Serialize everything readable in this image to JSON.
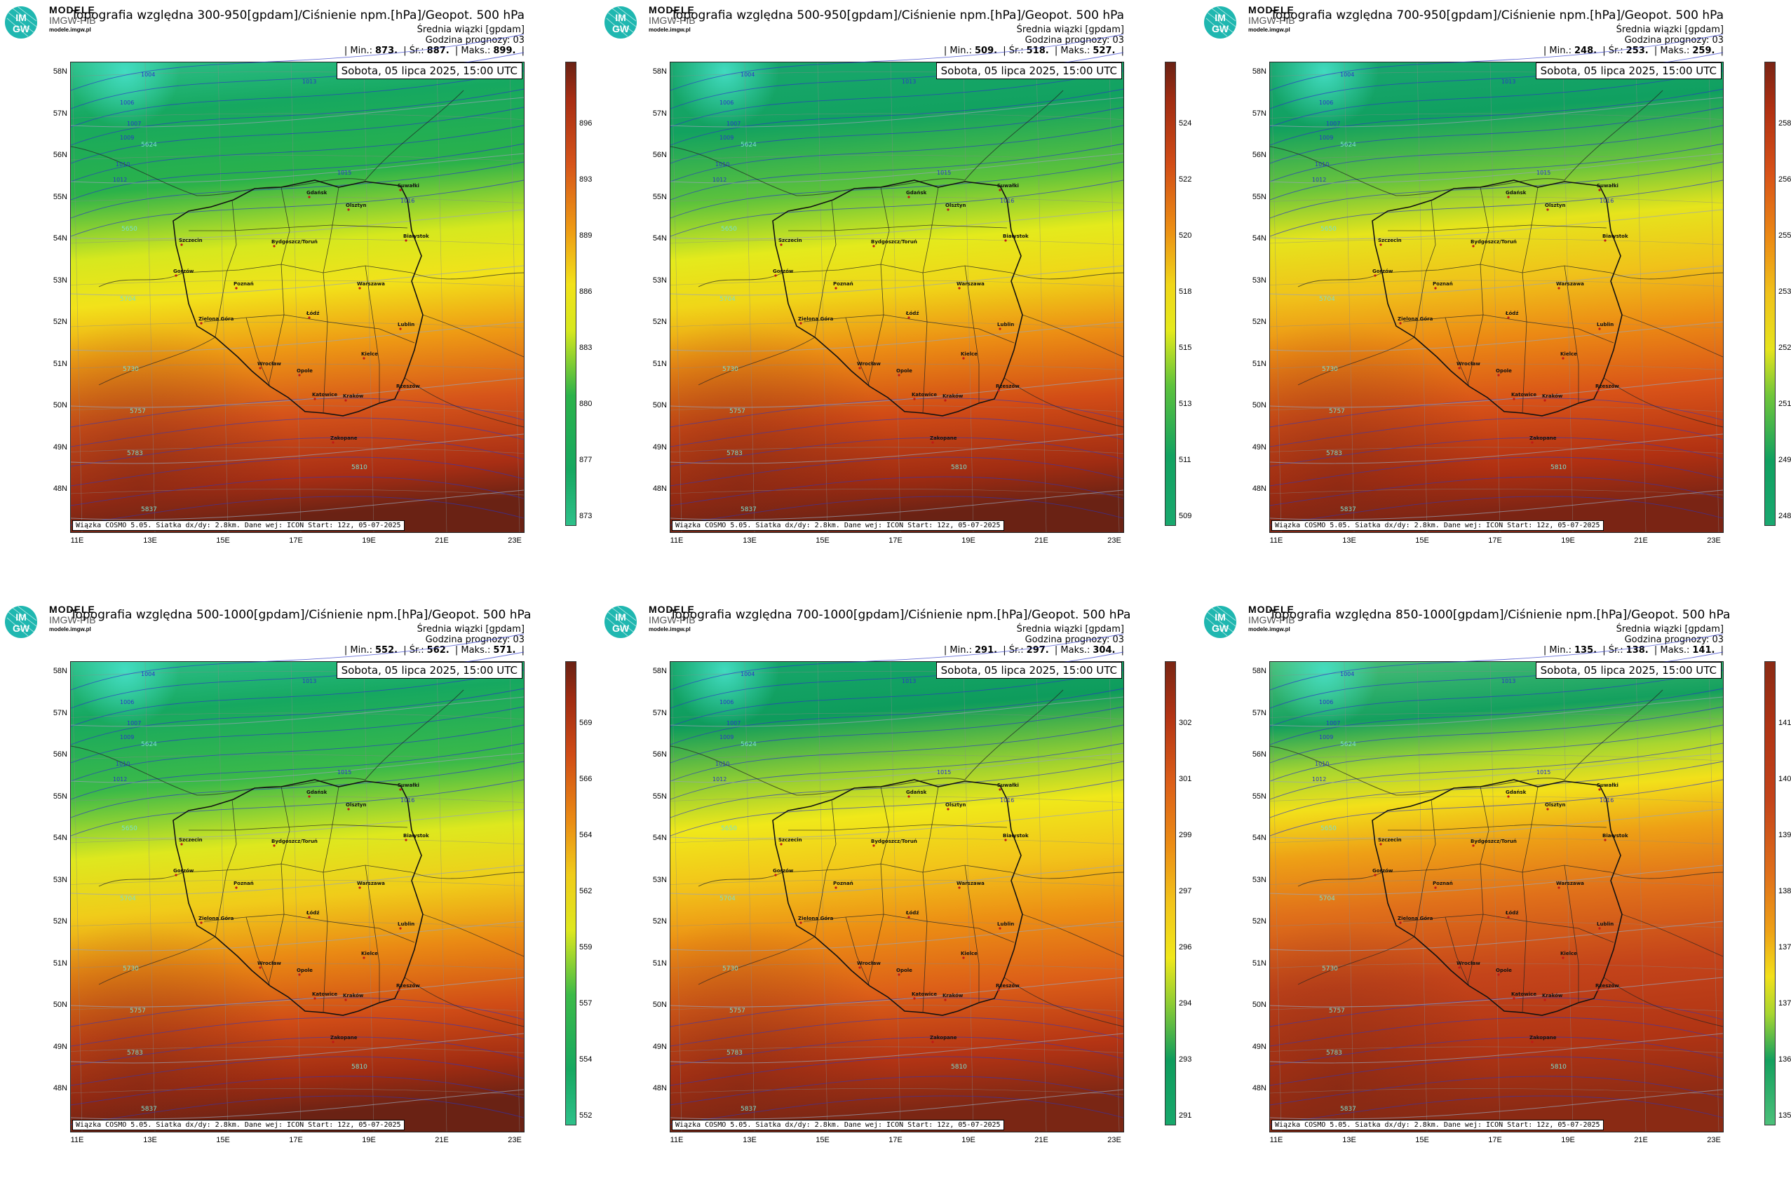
{
  "brand": {
    "line1": "MODELE",
    "line2": "IMGW-PIB",
    "line3": "modele.imgw.pl",
    "logo_text_top": "IM",
    "logo_text_bottom": "GW"
  },
  "common": {
    "subtitle": "Średnia wiązki [gpdam]",
    "forecast_hour": "Godzina prognozy: 03",
    "date": "Sobota, 05 lipca 2025, 15:00 UTC",
    "footer": "Wiązka COSMO 5.05. Siatka dx/dy: 2.8km. Dane wej: ICON Start: 12z, 05-07-2025",
    "stat_min": "| Min.:",
    "stat_mean": "| Śr.:",
    "stat_max": "| Maks.:",
    "stat_end": "|",
    "lat_labels": [
      "58N",
      "57N",
      "56N",
      "55N",
      "54N",
      "53N",
      "52N",
      "51N",
      "50N",
      "49N",
      "48N"
    ],
    "lon_labels": [
      "11E",
      "13E",
      "15E",
      "17E",
      "19E",
      "21E",
      "23E"
    ],
    "cities": [
      "Gdańsk",
      "Olsztyn",
      "Suwałki",
      "Szczecin",
      "Białystok",
      "Bydgoszcz/Toruń",
      "Gorzów",
      "Poznań",
      "Warszawa",
      "Zielona Góra",
      "Łódź",
      "Lublin",
      "Wrocław",
      "Kielce",
      "Opole",
      "Rzeszów",
      "Katowice",
      "Kraków",
      "Zakopane"
    ],
    "isobars": [
      "1004",
      "1006",
      "1007",
      "1009",
      "1010",
      "1012",
      "1013",
      "1015",
      "1016"
    ],
    "geopot": [
      "5624",
      "5650",
      "5704",
      "5730",
      "5757",
      "5783",
      "5810",
      "5837"
    ],
    "colors": {
      "min": "#3ee8d0",
      "low": "#12a86a",
      "mid": "#f2ee12",
      "high": "#e8850e",
      "top": "#b33212",
      "max": "#5a1a10"
    }
  },
  "panels": [
    {
      "title": "Topografia względna 300-950[gpdam]/Ciśnienie npm.[hPa]/Geopot. 500 hPa",
      "min": "873.",
      "mean": "887.",
      "max": "899.",
      "cbar": [
        "896",
        "893",
        "889",
        "886",
        "883",
        "880",
        "877",
        "873"
      ],
      "fmin": 873,
      "fmax": 899
    },
    {
      "title": "Topografia względna 500-950[gpdam]/Ciśnienie npm.[hPa]/Geopot. 500 hPa",
      "min": "509.",
      "mean": "518.",
      "max": "527.",
      "cbar": [
        "524",
        "522",
        "520",
        "518",
        "515",
        "513",
        "511",
        "509"
      ],
      "fmin": 509,
      "fmax": 527
    },
    {
      "title": "Topografia względna 700-950[gpdam]/Ciśnienie npm.[hPa]/Geopot. 500 hPa",
      "min": "248.",
      "mean": "253.",
      "max": "259.",
      "cbar": [
        "258",
        "256",
        "255",
        "253",
        "252",
        "251",
        "249",
        "248"
      ],
      "fmin": 248,
      "fmax": 259
    },
    {
      "title": "Topografia względna 500-1000[gpdam]/Ciśnienie npm.[hPa]/Geopot. 500 hPa",
      "min": "552.",
      "mean": "562.",
      "max": "571.",
      "cbar": [
        "569",
        "566",
        "564",
        "562",
        "559",
        "557",
        "554",
        "552"
      ],
      "fmin": 552,
      "fmax": 571
    },
    {
      "title": "Topografia względna 700-1000[gpdam]/Ciśnienie npm.[hPa]/Geopot. 500 hPa",
      "min": "291.",
      "mean": "297.",
      "max": "304.",
      "cbar": [
        "302",
        "301",
        "299",
        "297",
        "296",
        "294",
        "293",
        "291"
      ],
      "fmin": 291,
      "fmax": 304
    },
    {
      "title": "Topografia względna 850-1000[gpdam]/Ciśnienie npm.[hPa]/Geopot. 500 hPa",
      "min": "135.",
      "mean": "138.",
      "max": "141.",
      "cbar": [
        "141",
        "140",
        "139",
        "138",
        "137",
        "137",
        "136",
        "135"
      ],
      "fmin": 135,
      "fmax": 141
    }
  ]
}
